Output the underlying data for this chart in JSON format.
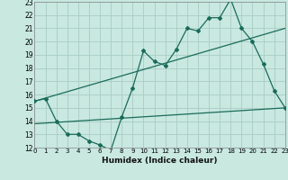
{
  "xlabel": "Humidex (Indice chaleur)",
  "ylabel": "",
  "bg_color": "#c8e8e0",
  "grid_color": "#a8ccc4",
  "line_color": "#1a6b5a",
  "xmin": 0,
  "xmax": 23,
  "ymin": 12,
  "ymax": 23,
  "line1_x": [
    0,
    1,
    2,
    3,
    4,
    5,
    6,
    7,
    8,
    9,
    10,
    11,
    12,
    13,
    14,
    15,
    16,
    17,
    18,
    19,
    20,
    21,
    22,
    23
  ],
  "line1_y": [
    15.5,
    15.7,
    14.0,
    13.0,
    13.0,
    12.5,
    12.2,
    11.8,
    14.3,
    16.5,
    19.3,
    18.5,
    18.2,
    19.4,
    21.0,
    20.8,
    21.8,
    21.8,
    23.2,
    21.0,
    20.0,
    18.3,
    16.3,
    15.0
  ],
  "line2_x": [
    0,
    23
  ],
  "line2_y": [
    15.5,
    21.0
  ],
  "line3_x": [
    0,
    23
  ],
  "line3_y": [
    13.8,
    15.0
  ]
}
